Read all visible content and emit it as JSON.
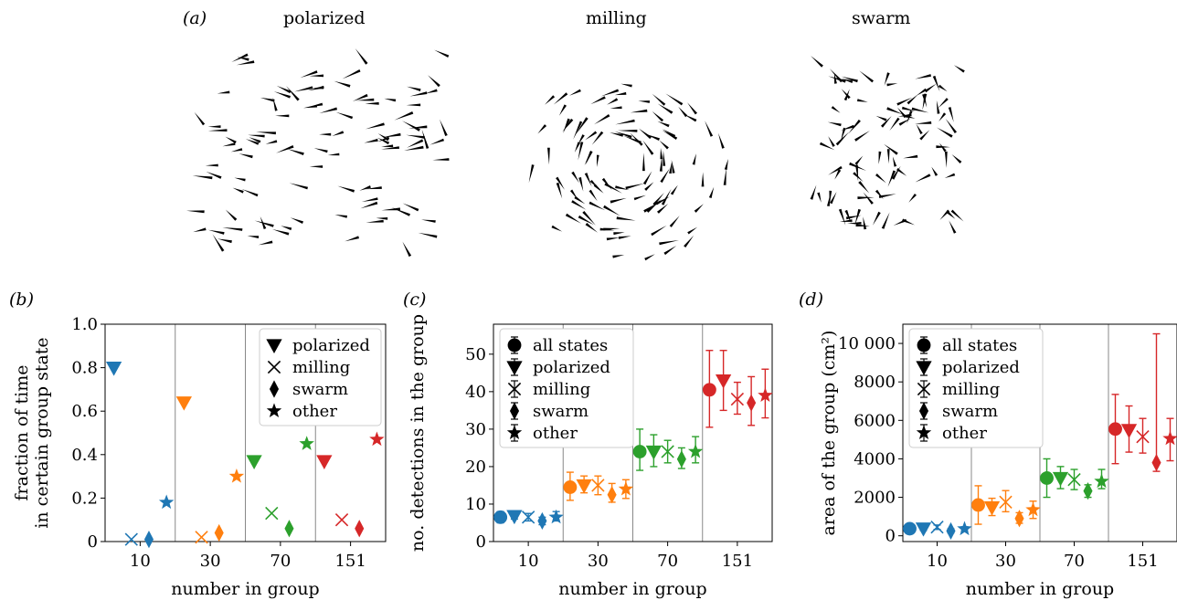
{
  "figure": {
    "panel_a": {
      "label": "(a)",
      "states": [
        {
          "name": "polarized"
        },
        {
          "name": "milling"
        },
        {
          "name": "swarm"
        }
      ]
    },
    "colors": {
      "10": "#1f77b4",
      "30": "#ff7f0e",
      "70": "#2ca02c",
      "151": "#d62728"
    }
  },
  "chart_data": [
    {
      "panel": "(b)",
      "type": "scatter",
      "xlabel": "number in group",
      "ylabel": [
        "fraction of time",
        "in certain group state"
      ],
      "groups": [
        "10",
        "30",
        "70",
        "151"
      ],
      "ylim": [
        0,
        1.0
      ],
      "yticks": [
        "0",
        "0.2",
        "0.4",
        "0.6",
        "0.8",
        "1.0"
      ],
      "legend": {
        "placement": "top-right",
        "entries": [
          "polarized",
          "milling",
          "swarm",
          "other"
        ]
      },
      "series": [
        {
          "name": "polarized",
          "marker": "triangle-down",
          "values": [
            0.8,
            0.64,
            0.37,
            0.37
          ]
        },
        {
          "name": "milling",
          "marker": "x",
          "values": [
            0.01,
            0.02,
            0.13,
            0.1
          ]
        },
        {
          "name": "swarm",
          "marker": "diamond",
          "values": [
            0.01,
            0.04,
            0.06,
            0.06
          ]
        },
        {
          "name": "other",
          "marker": "star",
          "values": [
            0.18,
            0.3,
            0.45,
            0.47
          ]
        }
      ]
    },
    {
      "panel": "(c)",
      "type": "scatter",
      "error_bars": true,
      "xlabel": "number in group",
      "ylabel": [
        "no. detections in the group"
      ],
      "groups": [
        "10",
        "30",
        "70",
        "151"
      ],
      "ylim": [
        0,
        58
      ],
      "yticks": [
        "0",
        "10",
        "20",
        "30",
        "40",
        "50"
      ],
      "legend": {
        "placement": "top-left",
        "entries": [
          "all states",
          "polarized",
          "milling",
          "swarm",
          "other"
        ]
      },
      "series": [
        {
          "name": "all states",
          "marker": "circle",
          "values": [
            6.5,
            14.5,
            24,
            40.5
          ],
          "low": [
            5,
            11,
            19,
            30.5
          ],
          "high": [
            8,
            18.5,
            30,
            51
          ]
        },
        {
          "name": "polarized",
          "marker": "triangle-down",
          "values": [
            6.8,
            15,
            24,
            43
          ],
          "low": [
            6,
            13,
            20,
            35
          ],
          "high": [
            7.8,
            17.5,
            28.5,
            51
          ]
        },
        {
          "name": "milling",
          "marker": "x",
          "values": [
            6.5,
            15,
            24,
            38
          ],
          "low": [
            5.5,
            12.5,
            21,
            34
          ],
          "high": [
            7.5,
            17.5,
            27,
            42.5
          ]
        },
        {
          "name": "swarm",
          "marker": "diamond",
          "values": [
            5.5,
            12.5,
            22,
            37
          ],
          "low": [
            4.5,
            10.5,
            19.5,
            31
          ],
          "high": [
            6.5,
            15.5,
            25,
            44
          ]
        },
        {
          "name": "other",
          "marker": "star",
          "values": [
            6.5,
            14,
            24,
            39
          ],
          "low": [
            5.5,
            11.5,
            21,
            33
          ],
          "high": [
            8,
            16.5,
            28,
            46
          ]
        }
      ]
    },
    {
      "panel": "(d)",
      "type": "scatter",
      "error_bars": true,
      "xlabel": "number in group",
      "ylabel": [
        "area of the group (cm²)"
      ],
      "groups": [
        "10",
        "30",
        "70",
        "151"
      ],
      "ylim": [
        -300,
        11000
      ],
      "yticks": [
        "0",
        "2000",
        "4000",
        "6000",
        "8000",
        "10 000"
      ],
      "legend": {
        "placement": "top-left",
        "entries": [
          "all states",
          "polarized",
          "milling",
          "swarm",
          "other"
        ]
      },
      "series": [
        {
          "name": "all states",
          "marker": "circle",
          "values": [
            370,
            1600,
            3000,
            5550
          ],
          "low": [
            250,
            600,
            2000,
            3750
          ],
          "high": [
            500,
            2600,
            4000,
            7350
          ]
        },
        {
          "name": "polarized",
          "marker": "triangle-down",
          "values": [
            380,
            1480,
            3000,
            5500
          ],
          "low": [
            280,
            1050,
            2450,
            4350
          ],
          "high": [
            480,
            1950,
            3600,
            6750
          ]
        },
        {
          "name": "milling",
          "marker": "x",
          "values": [
            450,
            1750,
            2920,
            5150
          ],
          "low": [
            330,
            1250,
            2400,
            4300
          ],
          "high": [
            560,
            2350,
            3450,
            6100
          ]
        },
        {
          "name": "swarm",
          "marker": "diamond",
          "values": [
            250,
            900,
            2330,
            3800
          ],
          "low": [
            150,
            650,
            2000,
            3350
          ],
          "high": [
            360,
            1200,
            2650,
            10500
          ]
        },
        {
          "name": "other",
          "marker": "star",
          "values": [
            360,
            1350,
            2830,
            5050
          ],
          "low": [
            260,
            900,
            2450,
            3900
          ],
          "high": [
            470,
            1800,
            3450,
            6100
          ]
        }
      ]
    }
  ]
}
